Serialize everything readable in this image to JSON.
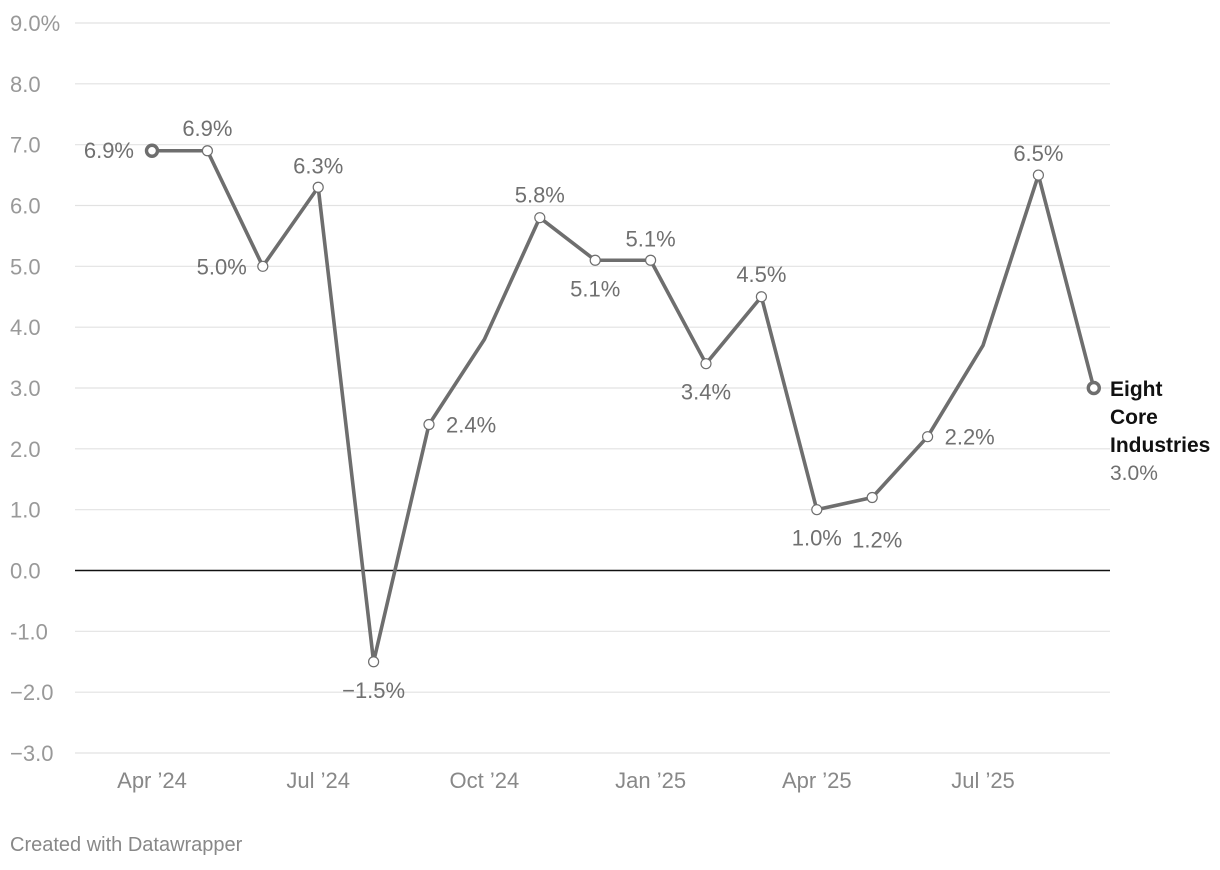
{
  "chart_data": {
    "type": "line",
    "title": "",
    "xlabel": "",
    "ylabel": "",
    "ylim": [
      -3.0,
      9.0
    ],
    "yticks": [
      -3,
      -2,
      -1,
      0,
      1,
      2,
      3,
      4,
      5,
      6,
      7,
      8,
      9
    ],
    "ytick_labels": [
      "−3.0",
      "−2.0",
      "-1.0",
      "0.0",
      "1.0",
      "2.0",
      "3.0",
      "4.0",
      "5.0",
      "6.0",
      "7.0",
      "8.0",
      "9.0%"
    ],
    "categories": [
      "Apr '24",
      "May '24",
      "Jun '24",
      "Jul '24",
      "Aug '24",
      "Sep '24",
      "Oct '24",
      "Nov '24",
      "Dec '24",
      "Jan '25",
      "Feb '25",
      "Mar '25",
      "Apr '25",
      "May '25",
      "Jun '25",
      "Jul '25",
      "Aug '25",
      "Sep '25"
    ],
    "xtick_labels": [
      {
        "index": 0,
        "label": "Apr ’24"
      },
      {
        "index": 3,
        "label": "Jul ’24"
      },
      {
        "index": 6,
        "label": "Oct ’24"
      },
      {
        "index": 9,
        "label": "Jan ’25"
      },
      {
        "index": 12,
        "label": "Apr ’25"
      },
      {
        "index": 15,
        "label": "Jul ’25"
      }
    ],
    "grid": true,
    "series": [
      {
        "name": "Eight Core Industries",
        "color": "#6e6e6e",
        "values": [
          6.9,
          6.9,
          5.0,
          6.3,
          -1.5,
          2.4,
          3.8,
          5.8,
          5.1,
          5.1,
          3.4,
          4.5,
          1.0,
          1.2,
          2.2,
          3.7,
          6.5,
          3.0
        ],
        "data_labels": [
          "6.9%",
          "6.9%",
          "5.0%",
          "6.3%",
          "−1.5%",
          "2.4%",
          "",
          "5.8%",
          "5.1%",
          "5.1%",
          "3.4%",
          "4.5%",
          "1.0%",
          "1.2%",
          "2.2%",
          "",
          "6.5%",
          ""
        ],
        "end_label": {
          "name_lines": [
            "Eight",
            "Core",
            "Industries"
          ],
          "value": "3.0%"
        }
      }
    ]
  },
  "footer": {
    "credit": "Created with Datawrapper"
  }
}
